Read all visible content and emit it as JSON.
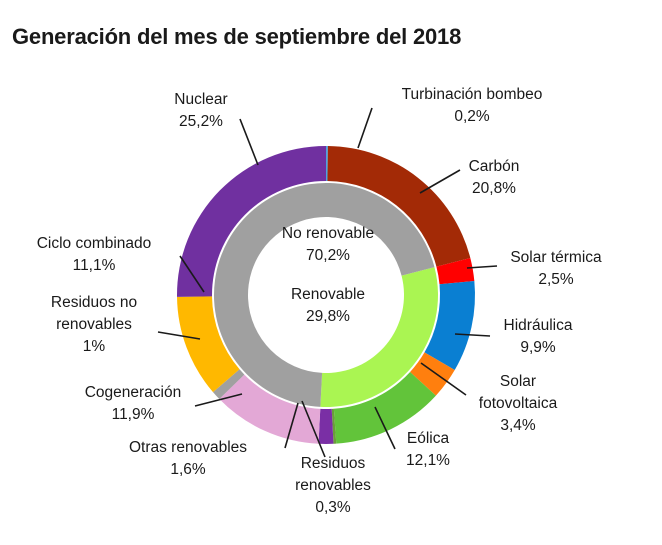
{
  "title": "Generación del mes de septiembre del 2018",
  "chart_data": {
    "type": "pie",
    "title": "Generación del mes de septiembre del 2018",
    "inner_ring": [
      {
        "label": "No renovable",
        "value": 70.2,
        "value_label": "70,2%",
        "color": "#A0A0A0"
      },
      {
        "label": "Renovable",
        "value": 29.8,
        "value_label": "29,8%",
        "color": "#AAF552"
      }
    ],
    "outer_ring": [
      {
        "label": "Turbinación bombeo",
        "value": 0.2,
        "value_label": "0,2%",
        "color": "#4DA3E0"
      },
      {
        "label": "Carbón",
        "value": 20.8,
        "value_label": "20,8%",
        "color": "#A32A06"
      },
      {
        "label": "Solar térmica",
        "value": 2.5,
        "value_label": "2,5%",
        "color": "#FF0000"
      },
      {
        "label": "Hidráulica",
        "value": 9.9,
        "value_label": "9,9%",
        "color": "#0A7FD2"
      },
      {
        "label": "Solar fotovoltaica",
        "value": 3.4,
        "value_label": "3,4%",
        "color": "#FF7F0E"
      },
      {
        "label": "Eólica",
        "value": 12.1,
        "value_label": "12,1%",
        "color": "#62C43A"
      },
      {
        "label": "Residuos renovables",
        "value": 0.3,
        "value_label": "0,3%",
        "color": "#6A9E3A"
      },
      {
        "label": "Otras renovables",
        "value": 1.6,
        "value_label": "1,6%",
        "color": "#7A2FA5"
      },
      {
        "label": "Cogeneración",
        "value": 11.9,
        "value_label": "11,9%",
        "color": "#E3A8D6"
      },
      {
        "label": "Residuos no renovables",
        "value": 1.0,
        "value_label": "1%",
        "color": "#A0A0A0"
      },
      {
        "label": "Ciclo combinado",
        "value": 11.1,
        "value_label": "11,1%",
        "color": "#FFB800"
      },
      {
        "label": "Nuclear",
        "value": 25.2,
        "value_label": "25,2%",
        "color": "#7030A0"
      }
    ],
    "label_lines": {
      "Turbinación bombeo": [
        "Turbinación bombeo"
      ],
      "Carbón": [
        "Carbón"
      ],
      "Solar térmica": [
        "Solar térmica"
      ],
      "Hidráulica": [
        "Hidráulica"
      ],
      "Solar fotovoltaica": [
        "Solar",
        "fotovoltaica"
      ],
      "Eólica": [
        "Eólica"
      ],
      "Residuos renovables": [
        "Residuos",
        "renovables"
      ],
      "Otras renovables": [
        "Otras renovables"
      ],
      "Cogeneración": [
        "Cogeneración"
      ],
      "Residuos no renovables": [
        "Residuos no",
        "renovables"
      ],
      "Ciclo combinado": [
        "Ciclo combinado"
      ],
      "Nuclear": [
        "Nuclear"
      ]
    }
  }
}
